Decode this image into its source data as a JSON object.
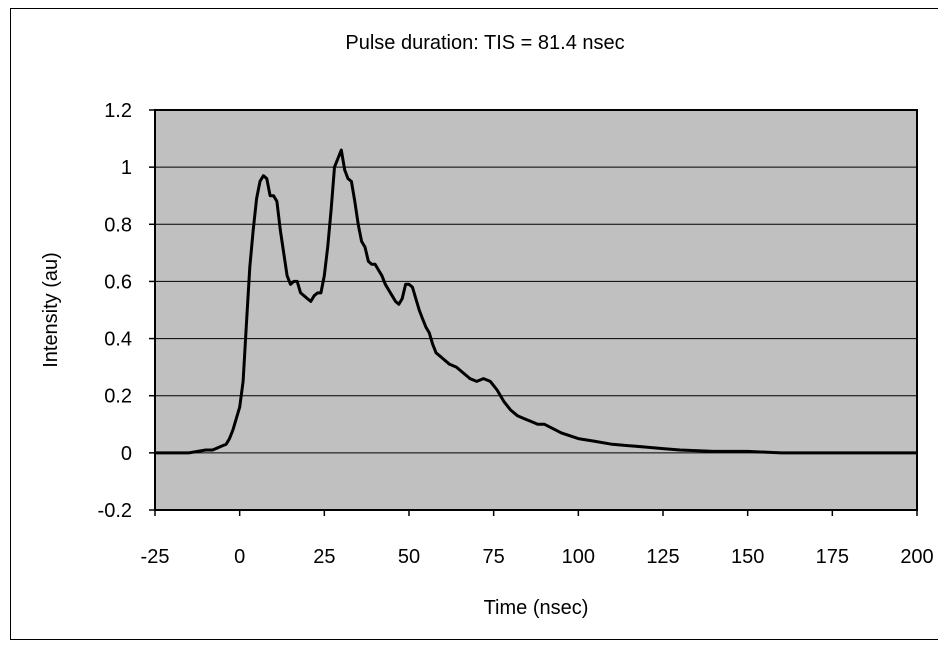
{
  "chart_data": {
    "type": "line",
    "title": "Pulse duration: TIS = 81.4 nsec",
    "xlabel": "Time (nsec)",
    "ylabel": "Intensity (au)",
    "xlim": [
      -25,
      200
    ],
    "ylim": [
      -0.2,
      1.2
    ],
    "xticks": [
      "-25",
      "0",
      "25",
      "50",
      "75",
      "100",
      "125",
      "150",
      "175",
      "200"
    ],
    "yticks": [
      "-0.2",
      "0",
      "0.2",
      "0.4",
      "0.6",
      "0.8",
      "1",
      "1.2"
    ],
    "grid": "horizontal",
    "plot_background": "#c0c0c0",
    "line_color": "#000000",
    "series": [
      {
        "x": [
          -25,
          -20,
          -15,
          -10,
          -8,
          -6,
          -4,
          -3,
          -2,
          -1,
          0,
          1,
          2,
          3,
          4,
          5,
          6,
          7,
          8,
          9,
          10,
          11,
          12,
          13,
          14,
          15,
          16,
          17,
          18,
          19,
          20,
          21,
          22,
          23,
          24,
          25,
          26,
          27,
          28,
          29,
          30,
          31,
          32,
          33,
          34,
          35,
          36,
          37,
          38,
          39,
          40,
          41,
          42,
          43,
          44,
          45,
          46,
          47,
          48,
          49,
          50,
          51,
          52,
          53,
          54,
          55,
          56,
          57,
          58,
          59,
          60,
          62,
          64,
          66,
          68,
          70,
          72,
          74,
          76,
          78,
          80,
          82,
          84,
          86,
          88,
          90,
          95,
          100,
          105,
          110,
          115,
          120,
          125,
          130,
          140,
          150,
          160,
          170,
          180,
          190,
          200
        ],
        "y": [
          0.0,
          0.0,
          0.0,
          0.01,
          0.01,
          0.02,
          0.03,
          0.05,
          0.08,
          0.12,
          0.16,
          0.25,
          0.45,
          0.65,
          0.78,
          0.89,
          0.95,
          0.97,
          0.96,
          0.9,
          0.9,
          0.88,
          0.78,
          0.7,
          0.62,
          0.59,
          0.6,
          0.6,
          0.56,
          0.55,
          0.54,
          0.53,
          0.55,
          0.56,
          0.56,
          0.62,
          0.72,
          0.85,
          1.0,
          1.03,
          1.06,
          0.99,
          0.96,
          0.95,
          0.88,
          0.8,
          0.74,
          0.72,
          0.67,
          0.66,
          0.66,
          0.64,
          0.62,
          0.59,
          0.57,
          0.55,
          0.53,
          0.52,
          0.54,
          0.59,
          0.59,
          0.58,
          0.54,
          0.5,
          0.47,
          0.44,
          0.42,
          0.38,
          0.35,
          0.34,
          0.33,
          0.31,
          0.3,
          0.28,
          0.26,
          0.25,
          0.26,
          0.25,
          0.22,
          0.18,
          0.15,
          0.13,
          0.12,
          0.11,
          0.1,
          0.1,
          0.07,
          0.05,
          0.04,
          0.03,
          0.025,
          0.02,
          0.015,
          0.01,
          0.005,
          0.005,
          0.0,
          0.0,
          0.0,
          0.0,
          0.0
        ]
      }
    ]
  }
}
